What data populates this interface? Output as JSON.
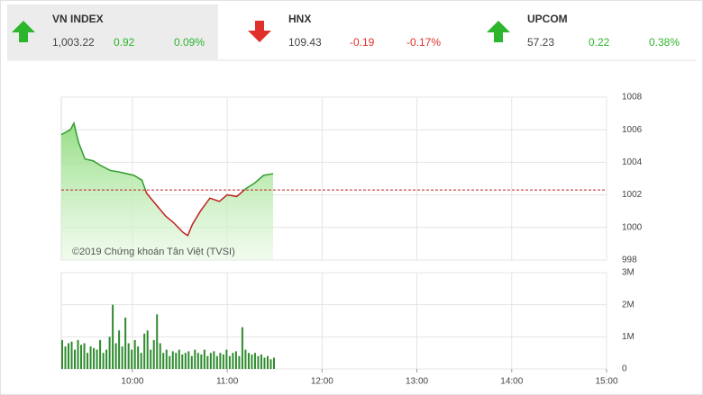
{
  "indices": [
    {
      "name": "VN INDEX",
      "value": "1,003.22",
      "change": "0.92",
      "pct": "0.09%",
      "direction": "up",
      "color": "#2db52d",
      "highlight": true
    },
    {
      "name": "HNX",
      "value": "109.43",
      "change": "-0.19",
      "pct": "-0.17%",
      "direction": "down",
      "color": "#e0302a",
      "highlight": false
    },
    {
      "name": "UPCOM",
      "value": "57.23",
      "change": "0.22",
      "pct": "0.38%",
      "direction": "up",
      "color": "#2db52d",
      "highlight": false
    }
  ],
  "chart_data": [
    {
      "type": "line",
      "annotation": "©2019 Chứng khoán Tân Việt (TVSI)",
      "x": [
        555,
        560.7,
        563,
        566,
        570,
        575,
        580,
        586,
        592,
        601,
        606,
        609,
        615,
        621,
        626,
        632,
        635,
        638,
        643,
        649,
        655,
        660,
        666,
        672,
        677,
        683,
        689
      ],
      "values": [
        1005.7,
        1006,
        1006.4,
        1005.2,
        1004.2,
        1004.1,
        1003.8,
        1003.5,
        1003.4,
        1003.2,
        1002.9,
        1002.1,
        1001.4,
        1000.7,
        1000.3,
        999.7,
        999.5,
        1000.2,
        1001.0,
        1001.8,
        1001.6,
        1002.0,
        1001.9,
        1002.4,
        1002.7,
        1003.2,
        1003.3
      ],
      "reference": 1002.3,
      "up_color": "#2e9e2e",
      "down_color": "#c0201c",
      "reference_color": "#c0201c",
      "xlim": [
        555,
        900
      ],
      "ylim": [
        998,
        1008
      ],
      "yticks": [
        998,
        1000,
        1002,
        1004,
        1006,
        1008
      ],
      "grid": true
    },
    {
      "type": "bar",
      "color": "#2e8b2e",
      "x": [
        555,
        557,
        559,
        561,
        563,
        565,
        567,
        569,
        571,
        573,
        575,
        577,
        579,
        581,
        583,
        585,
        587,
        589,
        591,
        593,
        595,
        597,
        599,
        601,
        603,
        605,
        607,
        609,
        611,
        613,
        615,
        617,
        619,
        621,
        623,
        625,
        627,
        629,
        631,
        633,
        635,
        637,
        639,
        641,
        643,
        645,
        647,
        649,
        651,
        653,
        655,
        657,
        659,
        661,
        663,
        665,
        667,
        669,
        671,
        673,
        675,
        677,
        679,
        681,
        683,
        685,
        687,
        689
      ],
      "values": [
        900000,
        700000,
        800000,
        850000,
        600000,
        900000,
        750000,
        800000,
        500000,
        700000,
        650000,
        600000,
        900000,
        500000,
        600000,
        1000000,
        2000000,
        800000,
        1200000,
        700000,
        1600000,
        800000,
        600000,
        900000,
        700000,
        500000,
        1100000,
        1200000,
        600000,
        900000,
        1700000,
        800000,
        500000,
        600000,
        400000,
        550000,
        500000,
        600000,
        450000,
        500000,
        550000,
        400000,
        600000,
        500000,
        450000,
        600000,
        400000,
        500000,
        550000,
        400000,
        500000,
        450000,
        600000,
        400000,
        500000,
        550000,
        400000,
        1300000,
        600000,
        500000,
        450000,
        500000,
        400000,
        450000,
        350000,
        400000,
        300000,
        350000
      ],
      "xlim": [
        555,
        900
      ],
      "xticks": [
        {
          "value": 600,
          "label": "10:00"
        },
        {
          "value": 660,
          "label": "11:00"
        },
        {
          "value": 720,
          "label": "12:00"
        },
        {
          "value": 780,
          "label": "13:00"
        },
        {
          "value": 840,
          "label": "14:00"
        },
        {
          "value": 900,
          "label": "15:00"
        }
      ],
      "ylim": [
        0,
        3000000
      ],
      "yticks": [
        0,
        {
          "value": 1000000,
          "label": "1M"
        },
        {
          "value": 2000000,
          "label": "2M"
        },
        {
          "value": 3000000,
          "label": "3M"
        }
      ],
      "grid": true
    }
  ]
}
